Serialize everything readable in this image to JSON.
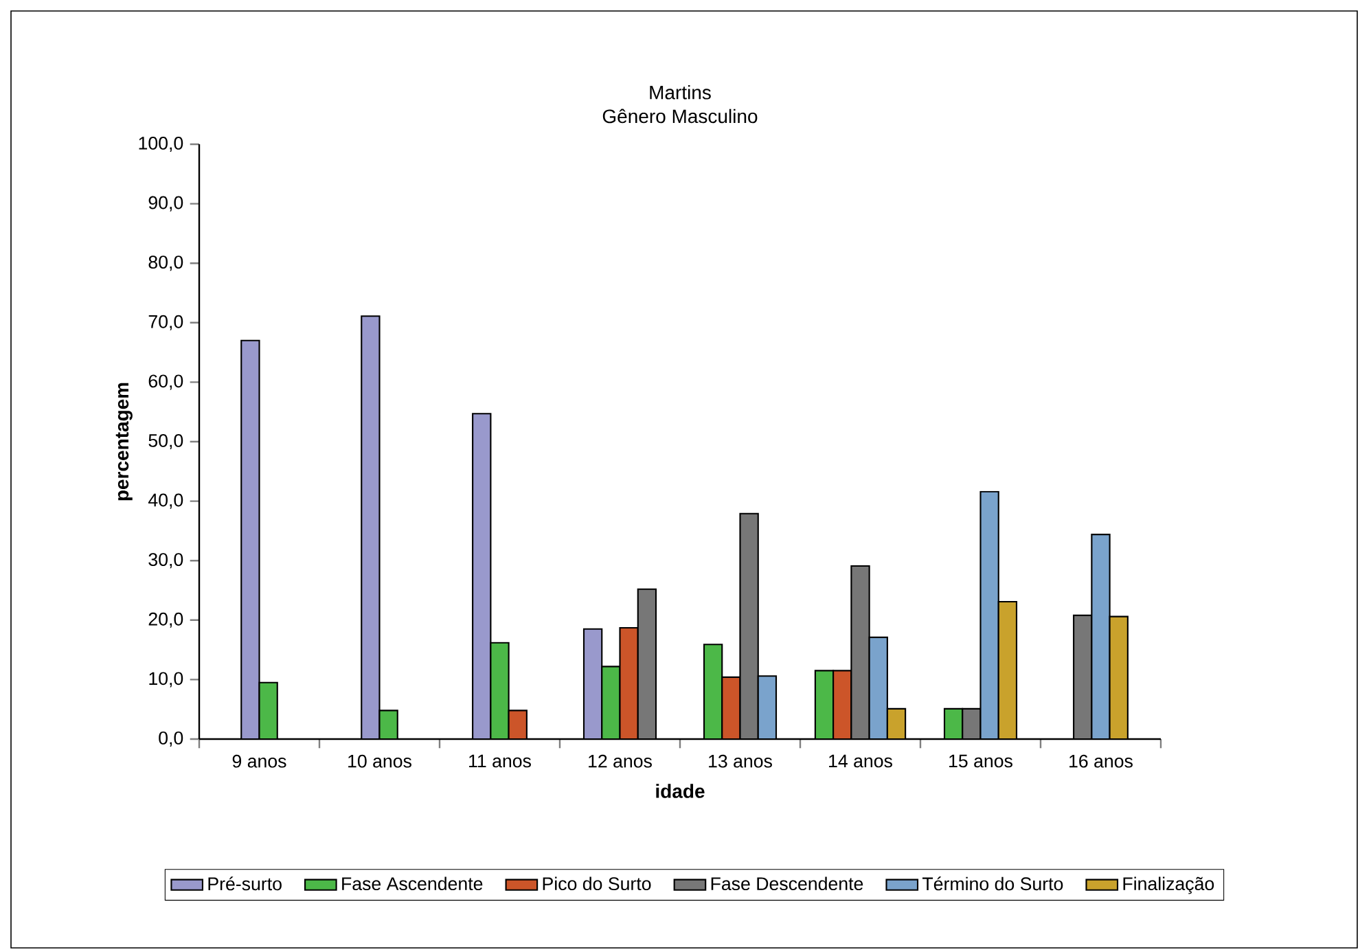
{
  "chart_data": {
    "type": "bar",
    "title": "Martins",
    "subtitle": "Gênero Masculino",
    "xlabel": "idade",
    "ylabel": "percentagem",
    "categories": [
      "9 anos",
      "10 anos",
      "11 anos",
      "12 anos",
      "13 anos",
      "14 anos",
      "15 anos",
      "16 anos"
    ],
    "series": [
      {
        "name": "Pré-surto",
        "color": "#9999cc",
        "values": [
          67.0,
          71.1,
          54.7,
          18.5,
          null,
          null,
          null,
          null
        ]
      },
      {
        "name": "Fase Ascendente",
        "color": "#4cb848",
        "values": [
          9.5,
          4.8,
          16.2,
          12.2,
          15.9,
          11.5,
          5.1,
          null
        ]
      },
      {
        "name": "Pico do Surto",
        "color": "#cc5529",
        "values": [
          null,
          null,
          4.8,
          18.7,
          10.4,
          11.5,
          null,
          null
        ]
      },
      {
        "name": "Fase Descendente",
        "color": "#777777",
        "values": [
          null,
          null,
          null,
          25.2,
          37.9,
          29.1,
          5.1,
          20.8
        ]
      },
      {
        "name": "Término do Surto",
        "color": "#7aa3cc",
        "values": [
          null,
          null,
          null,
          null,
          10.6,
          17.1,
          41.6,
          34.4
        ]
      },
      {
        "name": "Finalização",
        "color": "#c9a22c",
        "values": [
          null,
          null,
          null,
          null,
          null,
          5.1,
          23.1,
          20.6
        ]
      }
    ],
    "ylim": [
      0,
      100
    ],
    "yticks": [
      {
        "value": 0,
        "label": "0,0"
      },
      {
        "value": 10,
        "label": "10,0"
      },
      {
        "value": 20,
        "label": "20,0"
      },
      {
        "value": 30,
        "label": "30,0"
      },
      {
        "value": 40,
        "label": "40,0"
      },
      {
        "value": 50,
        "label": "50,0"
      },
      {
        "value": 60,
        "label": "60,0"
      },
      {
        "value": 70,
        "label": "70,0"
      },
      {
        "value": 80,
        "label": "80,0"
      },
      {
        "value": 90,
        "label": "90,0"
      },
      {
        "value": 100,
        "label": "100,0"
      }
    ],
    "grid": false,
    "legend": "bottom"
  }
}
